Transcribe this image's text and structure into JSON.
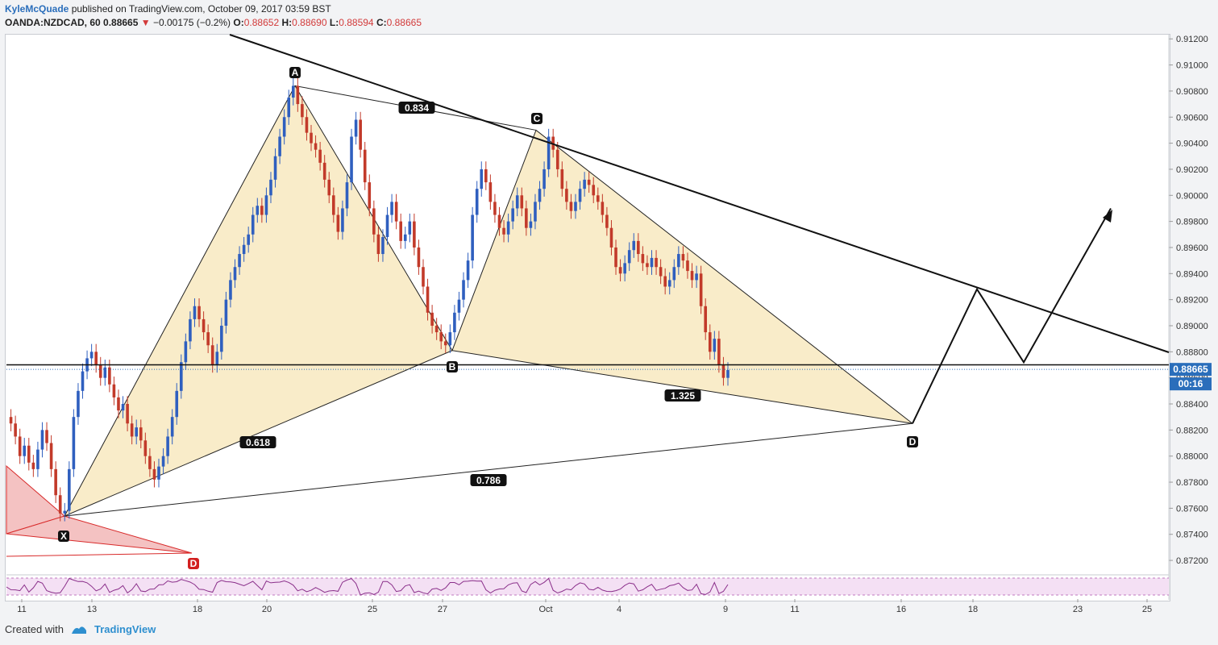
{
  "header": {
    "author": "KyleMcQuade",
    "published": "published on TradingView.com, October 09, 2017 03:59 BST",
    "symbol": "OANDA:NZDCAD, 60",
    "last": "0.88665",
    "change": "−0.00175 (−0.2%)",
    "o_label": "O:",
    "o": "0.88652",
    "h_label": "H:",
    "h": "0.88690",
    "l_label": "L:",
    "l": "0.88594",
    "c_label": "C:",
    "c": "0.88665"
  },
  "footer": {
    "created_with": "Created with",
    "brand": "TradingView"
  },
  "colors": {
    "up": "#2f5fbf",
    "down": "#c23a2a",
    "pattern_fill": "#f9ecc9",
    "red_fill": "#f4c2c2",
    "red_line": "#d82a2a",
    "price_tag": "#2a6ebb",
    "rsi_band": "#f4e0f4"
  },
  "chart_data": {
    "type": "line",
    "title": "",
    "y_axis": {
      "range": [
        0.8712,
        0.9122
      ],
      "ticks": [
        "0.91200",
        "0.91000",
        "0.90800",
        "0.90600",
        "0.90400",
        "0.90200",
        "0.90000",
        "0.89800",
        "0.89600",
        "0.89400",
        "0.89200",
        "0.89000",
        "0.88800",
        "0.88600",
        "0.88400",
        "0.88200",
        "0.88000",
        "0.87800",
        "0.87600",
        "0.87400",
        "0.87200"
      ]
    },
    "x_axis": {
      "ticks": [
        "11",
        "13",
        "18",
        "20",
        "25",
        "27",
        "Oct",
        "4",
        "9",
        "11",
        "16",
        "18",
        "23",
        "25"
      ]
    },
    "current_price": "0.88665",
    "countdown": "00:16",
    "horizontal_level": 0.887,
    "pattern_points": [
      "X",
      "A",
      "B",
      "C",
      "D"
    ],
    "pattern_values": {
      "X": 0.8754,
      "A": 0.9084,
      "B": 0.8881,
      "C": 0.905,
      "D": 0.8825
    },
    "ratios": [
      "0.834",
      "0.618",
      "1.325",
      "0.786"
    ],
    "previous_pattern_label": "D",
    "price_path": [
      0.883,
      0.8825,
      0.8815,
      0.88,
      0.8808,
      0.8795,
      0.879,
      0.8805,
      0.882,
      0.881,
      0.879,
      0.877,
      0.8756,
      0.8758,
      0.879,
      0.883,
      0.885,
      0.8865,
      0.8875,
      0.888,
      0.887,
      0.886,
      0.8868,
      0.8855,
      0.8845,
      0.8835,
      0.884,
      0.8825,
      0.8815,
      0.8822,
      0.8812,
      0.88,
      0.879,
      0.8782,
      0.8792,
      0.88,
      0.8815,
      0.883,
      0.885,
      0.8872,
      0.8888,
      0.8905,
      0.8915,
      0.8905,
      0.8895,
      0.8885,
      0.887,
      0.888,
      0.89,
      0.892,
      0.8935,
      0.8945,
      0.8955,
      0.8962,
      0.897,
      0.8985,
      0.8992,
      0.8985,
      0.9,
      0.9012,
      0.903,
      0.9045,
      0.906,
      0.9075,
      0.9084,
      0.907,
      0.906,
      0.9048,
      0.904,
      0.9035,
      0.9025,
      0.9012,
      0.9,
      0.8985,
      0.8972,
      0.899,
      0.901,
      0.9045,
      0.9058,
      0.9035,
      0.901,
      0.899,
      0.897,
      0.8955,
      0.8968,
      0.8985,
      0.8995,
      0.898,
      0.8965,
      0.897,
      0.898,
      0.896,
      0.8945,
      0.893,
      0.891,
      0.89,
      0.8895,
      0.8888,
      0.8885,
      0.8895,
      0.891,
      0.892,
      0.8935,
      0.895,
      0.8985,
      0.9005,
      0.902,
      0.901,
      0.8995,
      0.8985,
      0.8975,
      0.897,
      0.898,
      0.899,
      0.9,
      0.899,
      0.8975,
      0.898,
      0.8995,
      0.9005,
      0.902,
      0.9045,
      0.9035,
      0.902,
      0.9005,
      0.8995,
      0.8988,
      0.8995,
      0.9005,
      0.9012,
      0.9008,
      0.9,
      0.8995,
      0.8985,
      0.8975,
      0.896,
      0.8945,
      0.894,
      0.8948,
      0.8958,
      0.8965,
      0.8955,
      0.8948,
      0.8945,
      0.8952,
      0.8945,
      0.8938,
      0.893,
      0.8935,
      0.8945,
      0.8955,
      0.895,
      0.8942,
      0.8935,
      0.894,
      0.8915,
      0.8895,
      0.888,
      0.889,
      0.887,
      0.886,
      0.8866
    ],
    "projection": [
      {
        "x": "16",
        "y": 0.8825
      },
      {
        "x": "18",
        "y": 0.8928
      },
      {
        "x": "20",
        "y": 0.8872
      },
      {
        "x": "24",
        "y": 0.899
      }
    ]
  }
}
